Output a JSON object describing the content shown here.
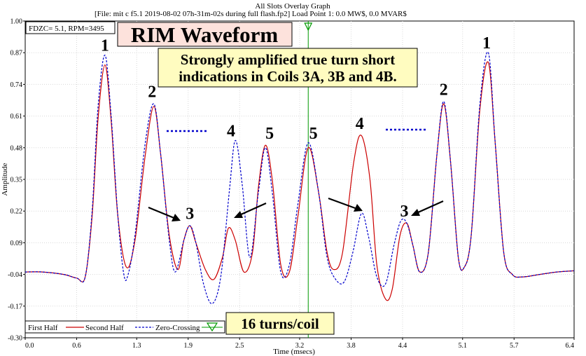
{
  "header": {
    "graph_title": "All Slots Overlay Graph",
    "file_line": "[File:                    mit c f5.1 2019-08-02 07h-31m-02s during full flash.fp2]  Load Point 1:   0.0 MW$,   0.0 MVAR$"
  },
  "info_box": "FDZC= 5.1, RPM=3495",
  "title_box": "RIM Waveform",
  "annotation": {
    "line1": "Strongly amplified true turn short",
    "line2": "indications in Coils 3A, 3B and 4B."
  },
  "turns_box": "16 turns/coil",
  "legend": {
    "first_half": "First Half",
    "second_half": "Second Half",
    "zero_crossing": "Zero-Crossing"
  },
  "peak_labels": [
    "1",
    "2",
    "3",
    "4",
    "5",
    "5",
    "4",
    "3",
    "2",
    "1"
  ],
  "colors": {
    "second_half": "#cc0000",
    "first_half": "#0000cc",
    "zero_crossing_marker": "#009900",
    "title_box_bg": "#fde2dc",
    "annotation_bg": "#fffcc0",
    "turns_box_bg": "#fffcc0",
    "dotted": "#0000cc"
  },
  "chart_data": {
    "type": "line",
    "xlabel": "Time (msecs)",
    "ylabel": "Amplitude",
    "xlim": [
      0.0,
      6.4
    ],
    "ylim": [
      -0.3,
      1.0
    ],
    "x_ticks": [
      "0.0",
      "0.6",
      "1.3",
      "1.9",
      "2.5",
      "3.2",
      "3.8",
      "4.4",
      "5.1",
      "5.7",
      "6.4"
    ],
    "y_ticks": [
      "1.00",
      "0.87",
      "0.74",
      "0.61",
      "0.48",
      "0.35",
      "0.22",
      "0.09",
      "-0.04",
      "-0.17",
      "-0.30"
    ],
    "zero_crossing_x": 3.3,
    "series": [
      {
        "name": "Second Half",
        "color": "#cc0000",
        "style": "solid",
        "points": [
          [
            0.0,
            -0.03
          ],
          [
            0.2,
            -0.03
          ],
          [
            0.45,
            -0.04
          ],
          [
            0.6,
            -0.055
          ],
          [
            0.7,
            -0.05
          ],
          [
            0.78,
            0.2
          ],
          [
            0.85,
            0.6
          ],
          [
            0.93,
            0.82
          ],
          [
            1.0,
            0.6
          ],
          [
            1.08,
            0.2
          ],
          [
            1.18,
            -0.01
          ],
          [
            1.28,
            0.1
          ],
          [
            1.4,
            0.45
          ],
          [
            1.5,
            0.65
          ],
          [
            1.58,
            0.45
          ],
          [
            1.68,
            0.12
          ],
          [
            1.78,
            -0.02
          ],
          [
            1.85,
            0.1
          ],
          [
            1.92,
            0.16
          ],
          [
            1.99,
            0.09
          ],
          [
            2.1,
            -0.02
          ],
          [
            2.2,
            -0.06
          ],
          [
            2.3,
            0.03
          ],
          [
            2.37,
            0.15
          ],
          [
            2.45,
            0.1
          ],
          [
            2.55,
            -0.03
          ],
          [
            2.65,
            0.05
          ],
          [
            2.72,
            0.32
          ],
          [
            2.8,
            0.49
          ],
          [
            2.88,
            0.35
          ],
          [
            2.98,
            0.0
          ],
          [
            3.08,
            -0.03
          ],
          [
            3.18,
            0.2
          ],
          [
            3.3,
            0.48
          ],
          [
            3.42,
            0.3
          ],
          [
            3.52,
            0.05
          ],
          [
            3.6,
            -0.02
          ],
          [
            3.7,
            0.05
          ],
          [
            3.83,
            0.42
          ],
          [
            3.92,
            0.53
          ],
          [
            4.02,
            0.35
          ],
          [
            4.1,
            0.0
          ],
          [
            4.2,
            -0.14
          ],
          [
            4.28,
            -0.1
          ],
          [
            4.37,
            0.12
          ],
          [
            4.45,
            0.17
          ],
          [
            4.52,
            0.08
          ],
          [
            4.6,
            -0.03
          ],
          [
            4.7,
            0.05
          ],
          [
            4.8,
            0.45
          ],
          [
            4.88,
            0.66
          ],
          [
            4.96,
            0.42
          ],
          [
            5.05,
            0.03
          ],
          [
            5.12,
            -0.01
          ],
          [
            5.2,
            0.12
          ],
          [
            5.3,
            0.63
          ],
          [
            5.4,
            0.83
          ],
          [
            5.48,
            0.5
          ],
          [
            5.58,
            0.05
          ],
          [
            5.68,
            -0.04
          ],
          [
            5.8,
            -0.05
          ],
          [
            6.0,
            -0.04
          ],
          [
            6.2,
            -0.03
          ],
          [
            6.4,
            -0.025
          ]
        ]
      },
      {
        "name": "First Half",
        "color": "#0000cc",
        "style": "dashed",
        "points": [
          [
            0.0,
            -0.03
          ],
          [
            0.2,
            -0.03
          ],
          [
            0.45,
            -0.04
          ],
          [
            0.6,
            -0.055
          ],
          [
            0.7,
            -0.05
          ],
          [
            0.78,
            0.22
          ],
          [
            0.85,
            0.65
          ],
          [
            0.93,
            0.86
          ],
          [
            1.0,
            0.62
          ],
          [
            1.08,
            0.2
          ],
          [
            1.15,
            -0.04
          ],
          [
            1.2,
            -0.04
          ],
          [
            1.28,
            0.12
          ],
          [
            1.4,
            0.5
          ],
          [
            1.5,
            0.66
          ],
          [
            1.58,
            0.45
          ],
          [
            1.68,
            0.1
          ],
          [
            1.75,
            -0.03
          ],
          [
            1.85,
            0.1
          ],
          [
            1.92,
            0.16
          ],
          [
            1.99,
            0.09
          ],
          [
            2.08,
            -0.08
          ],
          [
            2.18,
            -0.16
          ],
          [
            2.28,
            -0.05
          ],
          [
            2.38,
            0.3
          ],
          [
            2.45,
            0.51
          ],
          [
            2.53,
            0.33
          ],
          [
            2.62,
            0.03
          ],
          [
            2.72,
            0.3
          ],
          [
            2.8,
            0.48
          ],
          [
            2.88,
            0.3
          ],
          [
            2.98,
            -0.03
          ],
          [
            3.08,
            0.0
          ],
          [
            3.18,
            0.25
          ],
          [
            3.3,
            0.5
          ],
          [
            3.42,
            0.3
          ],
          [
            3.52,
            0.03
          ],
          [
            3.62,
            -0.06
          ],
          [
            3.72,
            -0.07
          ],
          [
            3.82,
            0.05
          ],
          [
            3.92,
            0.21
          ],
          [
            4.0,
            0.12
          ],
          [
            4.1,
            -0.05
          ],
          [
            4.2,
            -0.08
          ],
          [
            4.3,
            0.08
          ],
          [
            4.38,
            0.18
          ],
          [
            4.45,
            0.17
          ],
          [
            4.52,
            0.08
          ],
          [
            4.6,
            -0.03
          ],
          [
            4.7,
            0.05
          ],
          [
            4.8,
            0.45
          ],
          [
            4.88,
            0.67
          ],
          [
            4.96,
            0.42
          ],
          [
            5.05,
            0.03
          ],
          [
            5.12,
            -0.01
          ],
          [
            5.2,
            0.12
          ],
          [
            5.3,
            0.65
          ],
          [
            5.4,
            0.87
          ],
          [
            5.48,
            0.5
          ],
          [
            5.58,
            0.05
          ],
          [
            5.68,
            -0.04
          ],
          [
            5.8,
            -0.05
          ],
          [
            6.0,
            -0.04
          ],
          [
            6.2,
            -0.03
          ],
          [
            6.4,
            -0.025
          ]
        ]
      }
    ],
    "peak_label_positions": [
      [
        0.93,
        0.86
      ],
      [
        1.48,
        0.67
      ],
      [
        1.92,
        0.17
      ],
      [
        2.4,
        0.51
      ],
      [
        2.85,
        0.5
      ],
      [
        3.36,
        0.5
      ],
      [
        3.9,
        0.54
      ],
      [
        4.42,
        0.18
      ],
      [
        4.88,
        0.68
      ],
      [
        5.38,
        0.87
      ]
    ]
  }
}
